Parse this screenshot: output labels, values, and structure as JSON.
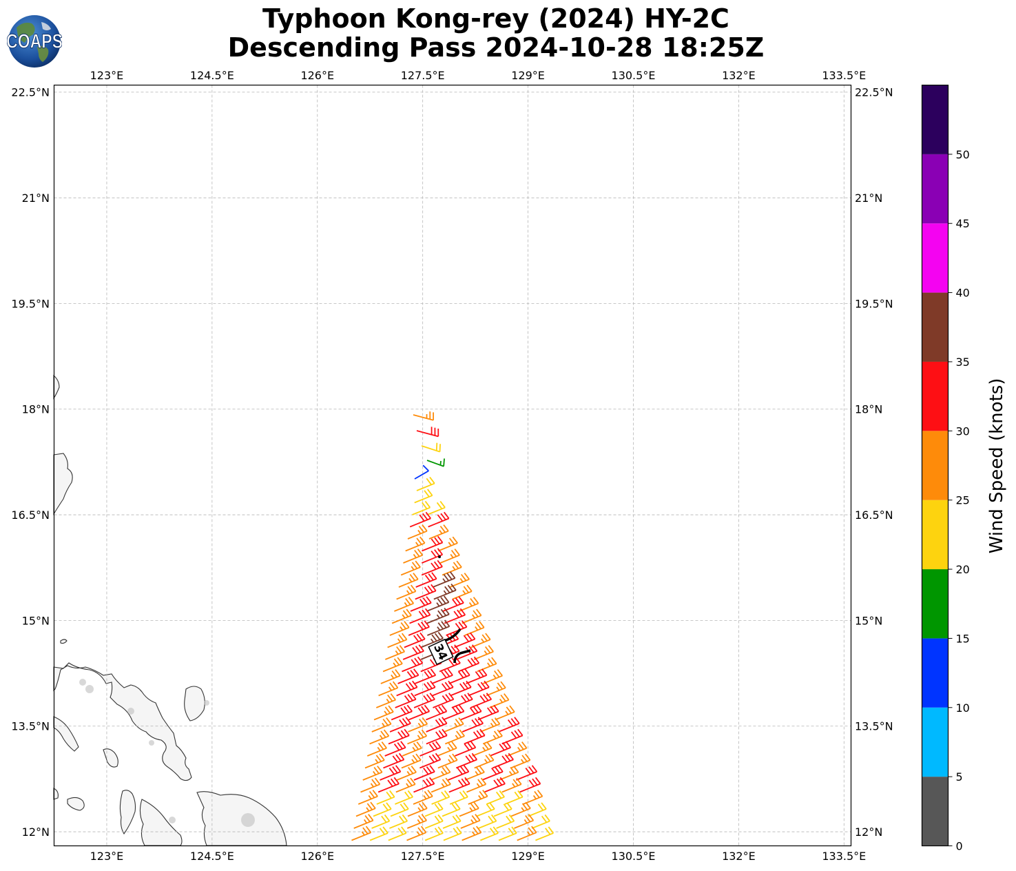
{
  "title": {
    "line1": "Typhoon Kong-rey (2024) HY-2C",
    "line2": "Descending Pass 2024-10-28 18:25Z"
  },
  "logo": {
    "text": "COAPS"
  },
  "map": {
    "lon_range": [
      122.25,
      133.6
    ],
    "lat_range": [
      11.8,
      22.6
    ],
    "x_ticks": [
      {
        "value": 123.0,
        "label": "123°E"
      },
      {
        "value": 124.5,
        "label": "124.5°E"
      },
      {
        "value": 126.0,
        "label": "126°E"
      },
      {
        "value": 127.5,
        "label": "127.5°E"
      },
      {
        "value": 129.0,
        "label": "129°E"
      },
      {
        "value": 130.5,
        "label": "130.5°E"
      },
      {
        "value": 132.0,
        "label": "132°E"
      },
      {
        "value": 133.5,
        "label": "133.5°E"
      }
    ],
    "y_ticks": [
      {
        "value": 22.5,
        "label": "22.5°N"
      },
      {
        "value": 21.0,
        "label": "21°N"
      },
      {
        "value": 19.5,
        "label": "19.5°N"
      },
      {
        "value": 18.0,
        "label": "18°N"
      },
      {
        "value": 16.5,
        "label": "16.5°N"
      },
      {
        "value": 15.0,
        "label": "15°N"
      },
      {
        "value": 13.5,
        "label": "13.5°N"
      },
      {
        "value": 12.0,
        "label": "12°N"
      }
    ],
    "grid": true,
    "contour_label": "34"
  },
  "colorbar": {
    "label": "Wind Speed (knots)",
    "bins": [
      {
        "min": 0,
        "max": 5,
        "color": "#575757"
      },
      {
        "min": 5,
        "max": 10,
        "color": "#00b9ff"
      },
      {
        "min": 10,
        "max": 15,
        "color": "#0034ff"
      },
      {
        "min": 15,
        "max": 20,
        "color": "#009600"
      },
      {
        "min": 20,
        "max": 25,
        "color": "#fdd30f"
      },
      {
        "min": 25,
        "max": 30,
        "color": "#fe8b0a"
      },
      {
        "min": 30,
        "max": 35,
        "color": "#fe0f14"
      },
      {
        "min": 35,
        "max": 40,
        "color": "#7f3a28"
      },
      {
        "min": 40,
        "max": 45,
        "color": "#f403f1"
      },
      {
        "min": 45,
        "max": 50,
        "color": "#8a00b4"
      },
      {
        "min": 50,
        "max": 55,
        "color": "#2c005d"
      }
    ],
    "ticks": [
      {
        "value": 0,
        "label": "0"
      },
      {
        "value": 5,
        "label": "5"
      },
      {
        "value": 10,
        "label": "10"
      },
      {
        "value": 15,
        "label": "15"
      },
      {
        "value": 20,
        "label": "20"
      },
      {
        "value": 25,
        "label": "25"
      },
      {
        "value": 30,
        "label": "30"
      },
      {
        "value": 35,
        "label": "35"
      },
      {
        "value": 40,
        "label": "40"
      },
      {
        "value": 45,
        "label": "45"
      },
      {
        "value": 50,
        "label": "50"
      }
    ]
  }
}
